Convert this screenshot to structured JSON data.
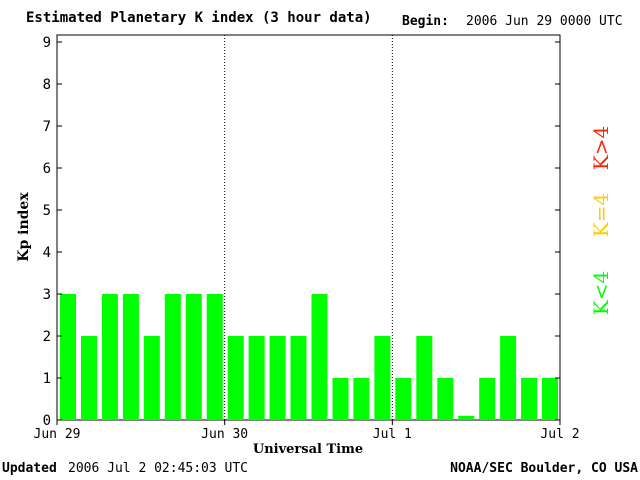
{
  "header": {
    "title": "Estimated Planetary K index (3 hour data)",
    "begin_label": "Begin:",
    "begin_value": "2006 Jun 29 0000 UTC"
  },
  "footer": {
    "updated_label": "Updated",
    "updated_value": "2006 Jul  2 02:45:03 UTC",
    "source": "NOAA/SEC Boulder, CO USA"
  },
  "legend": {
    "low": "K<4",
    "equal": "K=4",
    "high": "K>4"
  },
  "colors": {
    "low": "#00ff00",
    "equal": "#ffcc00",
    "high": "#ff2200"
  },
  "chart_data": {
    "type": "bar",
    "xlabel": "Universal Time",
    "ylabel": "Kp index",
    "ylim": [
      0,
      9
    ],
    "yticks": [
      "0",
      "1",
      "2",
      "3",
      "4",
      "5",
      "6",
      "7",
      "8",
      "9"
    ],
    "x_tick_labels": [
      "Jun 29",
      "Jun 30",
      "Jul 1",
      "Jul 2"
    ],
    "day_dividers": [
      "Jun 30",
      "Jul 1"
    ],
    "values": [
      3,
      2,
      3,
      3,
      2,
      3,
      3,
      3,
      2,
      2,
      2,
      2,
      3,
      1,
      1,
      2,
      1,
      2,
      1,
      0.1,
      1,
      2,
      1,
      1
    ],
    "grid": false
  }
}
